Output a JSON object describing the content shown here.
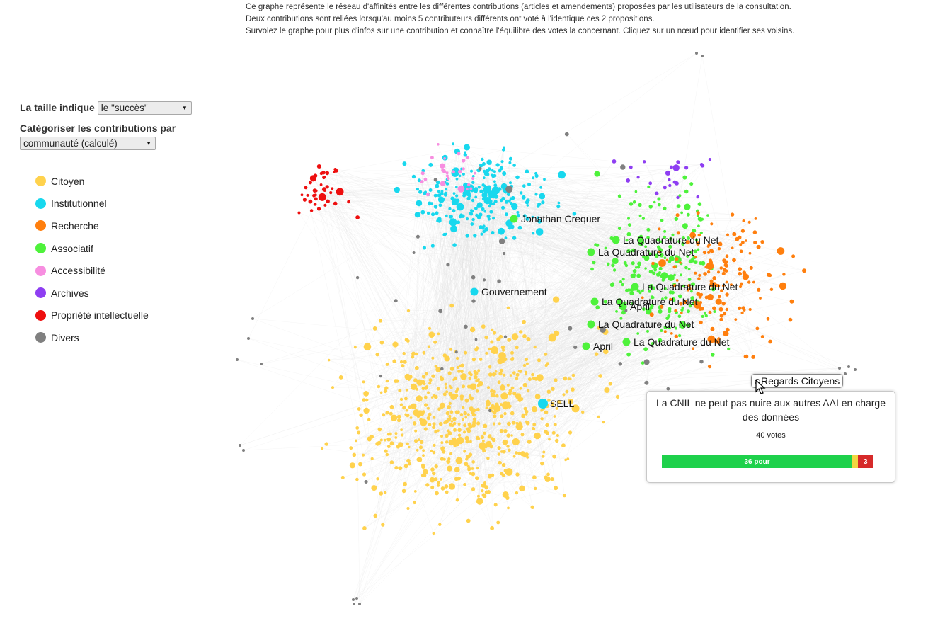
{
  "intro": {
    "line1": "Ce graphe représente le réseau d'affinités entre les différentes contributions (articles et amendements) proposées par les utilisateurs de la consultation.",
    "line2": "Deux contributions sont reliées lorsqu'au moins 5 contributeurs différents ont voté à l'identique ces 2 propositions.",
    "line3": "Survolez le graphe pour plus d'infos sur une contribution et connaître l'équilibre des votes la concernant. Cliquez sur un nœud pour identifier ses voisins."
  },
  "controls": {
    "size_label": "La taille indique",
    "size_value": "le \"succès\"",
    "category_label": "Catégoriser les contributions par",
    "category_value": "communauté (calculé)"
  },
  "legend": [
    {
      "label": "Citoyen",
      "color": "#ffd24d"
    },
    {
      "label": "Institutionnel",
      "color": "#18d8ee"
    },
    {
      "label": "Recherche",
      "color": "#ff7f0e"
    },
    {
      "label": "Associatif",
      "color": "#4ef23b"
    },
    {
      "label": "Accessibilité",
      "color": "#f78ee0"
    },
    {
      "label": "Archives",
      "color": "#8e3ef2"
    },
    {
      "label": "Propriété intellectuelle",
      "color": "#ee0f0f"
    },
    {
      "label": "Divers",
      "color": "#808080"
    }
  ],
  "node_labels": [
    {
      "text": "Jonathan Crequer",
      "category": "Associatif"
    },
    {
      "text": "La Quadrature du Net",
      "category": "Associatif"
    },
    {
      "text": "La Quadrature du Net",
      "category": "Associatif"
    },
    {
      "text": "La Quadrature du Net",
      "category": "Associatif"
    },
    {
      "text": "La Quadrature du Net",
      "category": "Associatif"
    },
    {
      "text": "April",
      "category": "Associatif"
    },
    {
      "text": "La Quadrature du Net",
      "category": "Associatif"
    },
    {
      "text": "April",
      "category": "Associatif"
    },
    {
      "text": "La Quadrature du Net",
      "category": "Associatif"
    },
    {
      "text": "Gouvernement",
      "category": "Institutionnel"
    },
    {
      "text": "SELL",
      "category": "Institutionnel"
    }
  ],
  "hovered_node": {
    "label": "Regards Citoyens"
  },
  "tooltip": {
    "title": "La CNIL ne peut pas nuire aux autres AAI en charge des données",
    "votes_text": "40 votes",
    "pour_count": 36,
    "neutral_count": 1,
    "contre_count": 3,
    "pour_text": "36 pour",
    "contre_text": "3",
    "pour_color": "#1ed14b",
    "neutral_color": "#f2d641",
    "contre_color": "#d62a2a"
  }
}
